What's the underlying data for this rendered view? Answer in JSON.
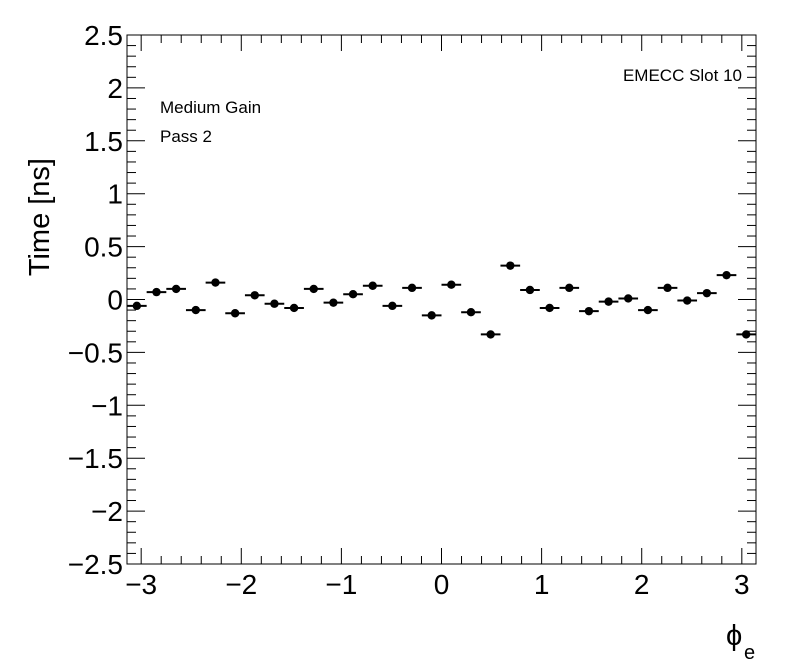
{
  "chart_data": {
    "type": "scatter",
    "title": "",
    "xlabel": "ϕ",
    "xlabel_subscript": "e",
    "ylabel": "Time [ns]",
    "xlim": [
      -3.1416,
      3.1416
    ],
    "ylim": [
      -2.5,
      2.5
    ],
    "grid": false,
    "x_ticks": [
      {
        "value": -3,
        "label": "−3"
      },
      {
        "value": -2,
        "label": "−2"
      },
      {
        "value": -1,
        "label": "−1"
      },
      {
        "value": 0,
        "label": "0"
      },
      {
        "value": 1,
        "label": "1"
      },
      {
        "value": 2,
        "label": "2"
      },
      {
        "value": 3,
        "label": "3"
      }
    ],
    "y_ticks": [
      {
        "value": -2.5,
        "label": "−2.5"
      },
      {
        "value": -2,
        "label": "−2"
      },
      {
        "value": -1.5,
        "label": "−1.5"
      },
      {
        "value": -1,
        "label": "−1"
      },
      {
        "value": -0.5,
        "label": "−0.5"
      },
      {
        "value": 0,
        "label": "0"
      },
      {
        "value": 0.5,
        "label": "0.5"
      },
      {
        "value": 1,
        "label": "1"
      },
      {
        "value": 1.5,
        "label": "1.5"
      },
      {
        "value": 2,
        "label": "2"
      },
      {
        "value": 2.5,
        "label": "2.5"
      }
    ],
    "annotations": {
      "label": "EMECC Slot 10",
      "gain": "Medium Gain",
      "pass": "Pass 2"
    },
    "series": [
      {
        "x_error": 0.0982,
        "x": [
          -3.0434,
          -2.8471,
          -2.6507,
          -2.4544,
          -2.258,
          -2.0617,
          -1.8653,
          -1.669,
          -1.4726,
          -1.2763,
          -1.0799,
          -0.8836,
          -0.6872,
          -0.4909,
          -0.2945,
          -0.0982,
          0.0982,
          0.2945,
          0.4909,
          0.6872,
          0.8836,
          1.0799,
          1.2763,
          1.4726,
          1.669,
          1.8653,
          2.0617,
          2.258,
          2.4544,
          2.6507,
          2.8471,
          3.0434
        ],
        "y": [
          -0.06,
          0.07,
          0.1,
          -0.1,
          0.16,
          -0.13,
          0.04,
          -0.04,
          -0.08,
          0.1,
          -0.03,
          0.05,
          0.13,
          -0.06,
          0.11,
          -0.15,
          0.14,
          -0.12,
          -0.33,
          0.32,
          0.09,
          -0.08,
          0.11,
          -0.11,
          -0.02,
          0.01,
          -0.1,
          0.11,
          -0.01,
          0.06,
          0.23,
          -0.33
        ]
      }
    ]
  }
}
